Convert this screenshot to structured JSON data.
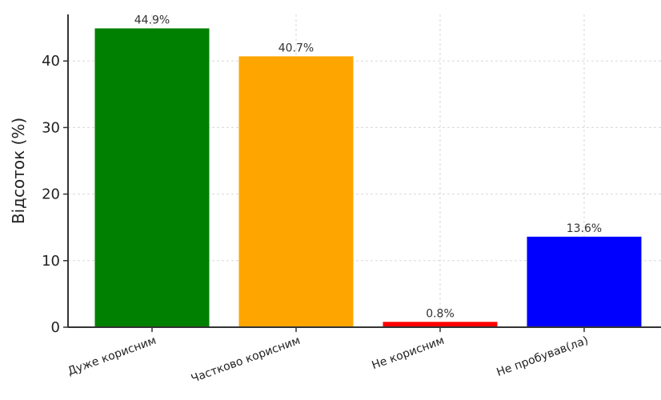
{
  "chart_data": {
    "type": "bar",
    "categories": [
      "Дуже корисним",
      "Частково корисним",
      "Не корисним",
      "Не пробував(ла)"
    ],
    "values": [
      44.9,
      40.7,
      0.8,
      13.6
    ],
    "data_labels": [
      "44.9%",
      "40.7%",
      "0.8%",
      "13.6%"
    ],
    "colors": [
      "#008000",
      "#FFA500",
      "#FF0000",
      "#0000FF"
    ],
    "title": "",
    "xlabel": "",
    "ylabel": "Відсоток (%)",
    "ylim": [
      0,
      47
    ],
    "yticks": [
      0,
      10,
      20,
      30,
      40
    ],
    "grid": true,
    "x_tick_rotation": 20
  }
}
